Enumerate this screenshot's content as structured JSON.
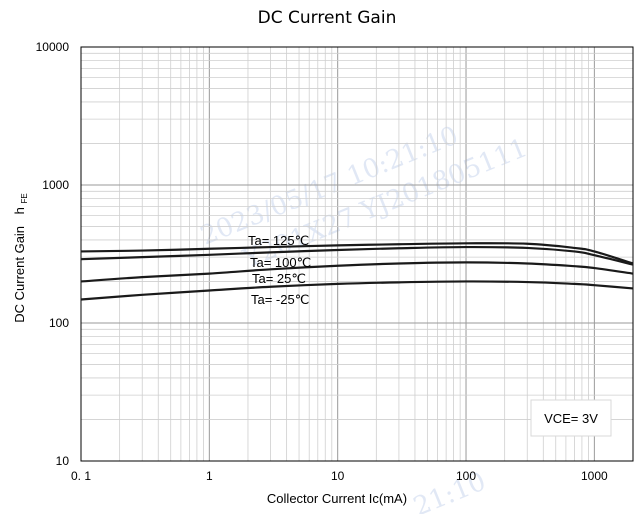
{
  "chart_data": {
    "type": "line",
    "title": "DC Current Gain",
    "xlabel": "Collector Current   Ic(mA)",
    "ylabel": "DC Current Gain",
    "ylabel_symbol": "h",
    "ylabel_subscript": "FE",
    "x_scale": "log",
    "y_scale": "log",
    "xlim": [
      0.1,
      2000
    ],
    "ylim": [
      10,
      10000
    ],
    "x_ticks": [
      0.1,
      1,
      10,
      100,
      1000
    ],
    "x_tick_labels": [
      "0. 1",
      "1",
      "10",
      "100",
      "1000"
    ],
    "y_ticks": [
      10,
      100,
      1000,
      10000
    ],
    "y_tick_labels": [
      "10",
      "100",
      "1000",
      "10000"
    ],
    "grid": true,
    "condition": "VCE= 3V",
    "watermark": [
      "2023/05/17 10:21:10",
      "Y201X27 YJ201805111",
      "21:10"
    ],
    "series": [
      {
        "name": "Ta= 125℃",
        "x": [
          0.1,
          0.3,
          1,
          3,
          10,
          30,
          100,
          300,
          700,
          1000,
          2000
        ],
        "values": [
          330,
          335,
          345,
          355,
          365,
          372,
          378,
          375,
          350,
          330,
          270
        ]
      },
      {
        "name": "Ta= 100℃",
        "x": [
          0.1,
          0.3,
          1,
          3,
          10,
          30,
          100,
          300,
          700,
          1000,
          2000
        ],
        "values": [
          290,
          300,
          312,
          325,
          338,
          348,
          355,
          350,
          330,
          310,
          265
        ]
      },
      {
        "name": "Ta= 25℃",
        "x": [
          0.1,
          0.3,
          1,
          3,
          10,
          30,
          100,
          300,
          700,
          1000,
          2000
        ],
        "values": [
          200,
          215,
          228,
          245,
          260,
          270,
          275,
          270,
          258,
          250,
          228
        ]
      },
      {
        "name": "Ta= -25℃",
        "x": [
          0.1,
          0.3,
          1,
          3,
          10,
          30,
          100,
          300,
          700,
          1000,
          2000
        ],
        "values": [
          148,
          160,
          172,
          183,
          192,
          197,
          200,
          198,
          192,
          188,
          178
        ]
      }
    ]
  }
}
